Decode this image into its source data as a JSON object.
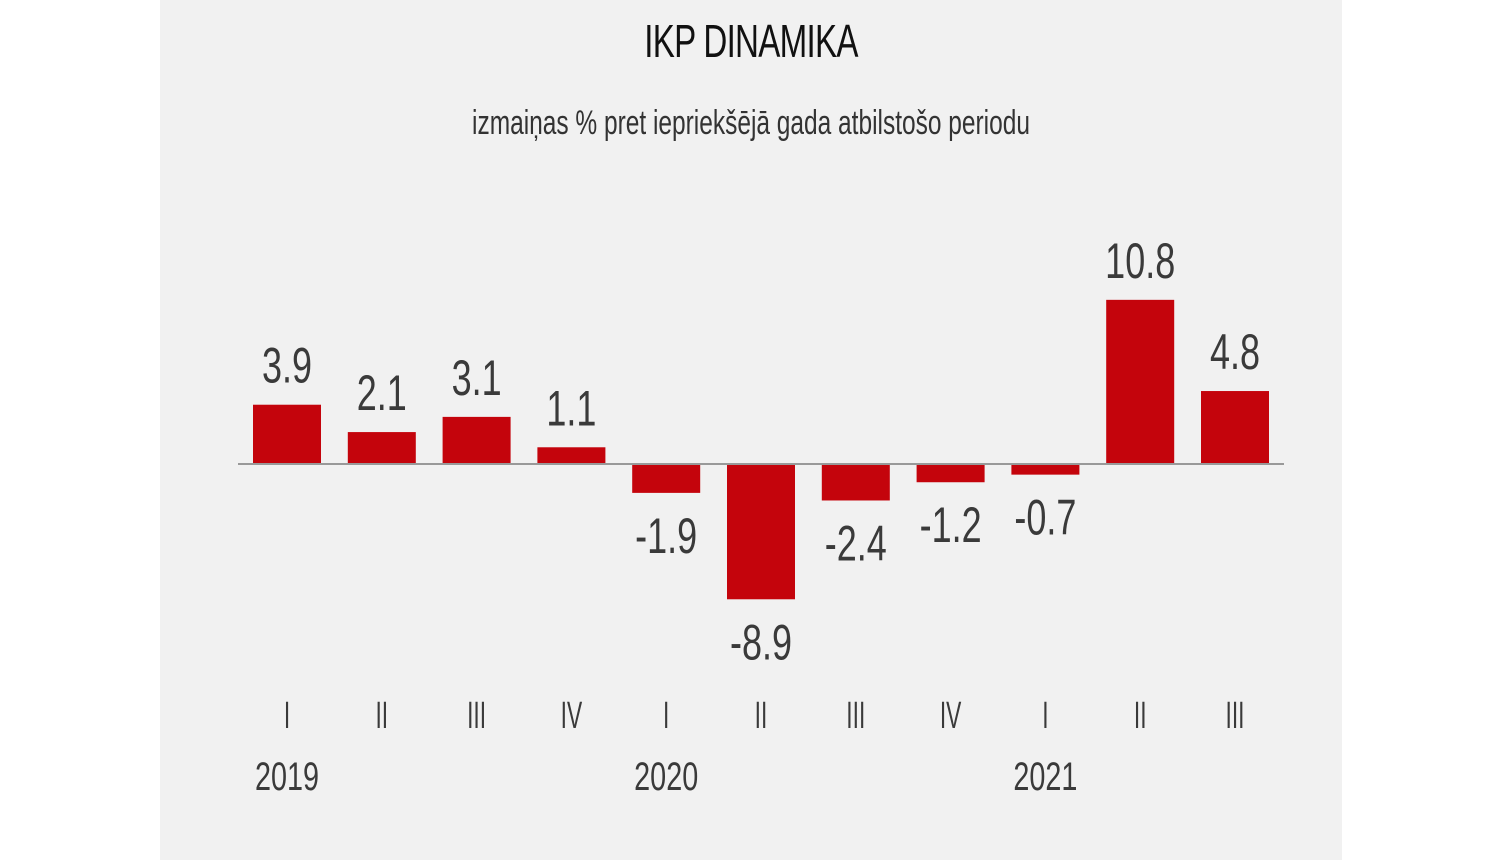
{
  "chart_data": {
    "type": "bar",
    "title": "IKP DINAMIKA",
    "subtitle": "izmaiņas % pret iepriekšējā gada atbilstošo periodu",
    "categories": [
      "I",
      "II",
      "III",
      "IV",
      "I",
      "II",
      "III",
      "IV",
      "I",
      "II",
      "III"
    ],
    "years": [
      {
        "label": "2019",
        "category_index": 0
      },
      {
        "label": "2020",
        "category_index": 4
      },
      {
        "label": "2021",
        "category_index": 8
      }
    ],
    "values": [
      3.9,
      2.1,
      3.1,
      1.1,
      -1.9,
      -8.9,
      -2.4,
      -1.2,
      -0.7,
      10.8,
      4.8
    ],
    "value_labels": [
      "3.9",
      "2.1",
      "3.1",
      "1.1",
      "-1.9",
      "-8.9",
      "-2.4",
      "-1.2",
      "-0.7",
      "10.8",
      "4.8"
    ],
    "xlabel": "",
    "ylabel": "",
    "ylim": [
      -8.9,
      10.8
    ],
    "grid": false,
    "bar_color": "#c4040c",
    "axis_color": "#999999"
  }
}
